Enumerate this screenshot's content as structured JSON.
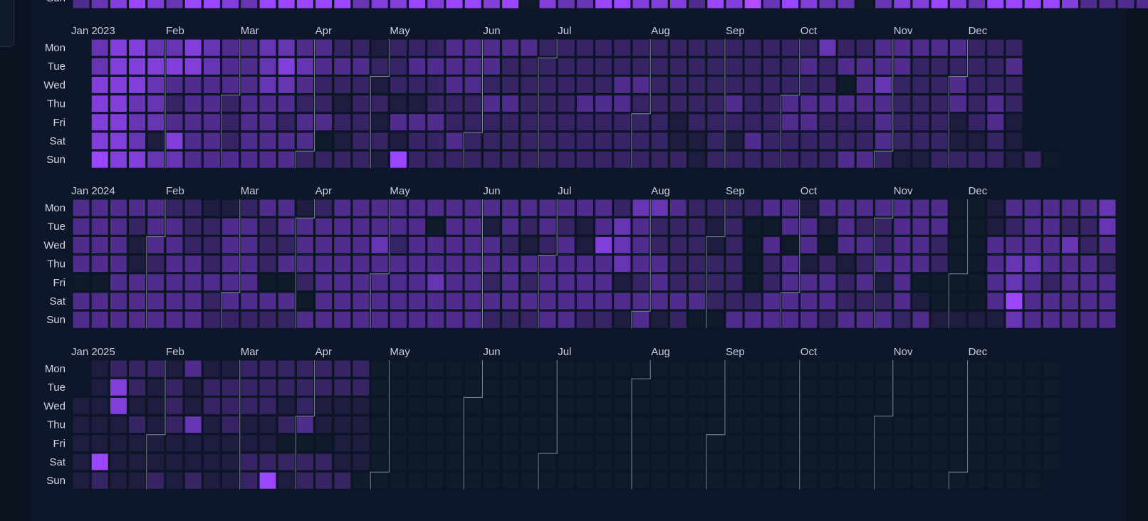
{
  "heatmap": {
    "type": "calendar-heatmap",
    "palette": {
      "empty": "#0f1a2a",
      "low": "#1e1c3f",
      "high": "#9a46ff"
    },
    "day_labels": [
      "Mon",
      "Tue",
      "Wed",
      "Thu",
      "Fri",
      "Sat",
      "Sun"
    ],
    "partial_top": {
      "day_label": "Sun",
      "levels": "34565466546666645565665605446655536574654404556546666533335343444546"
    },
    "years": [
      {
        "label": "Jan 2023",
        "months": [
          "Feb",
          "Mar",
          "Apr",
          "May",
          "Jun",
          "Jul",
          "Aug",
          "Sep",
          "Oct",
          "Nov",
          "Dec"
        ],
        "rows": [
          "-45544543344332212223333322222222222222242233333222",
          "-45555543345433322333332222222222222222323333222223",
          "-55543333344322212223322222223322222222220342223222",
          "-55442332333221221122233222333222223223333332223232",
          "-55443332332332213332222222222221222223322232221231",
          "-55415332333301221223222222222221121322222232221121",
          "-6554433333322221622222222222222212222222332112222120"
        ]
      },
      {
        "label": "Jan 2024",
        "months": [
          "Feb",
          "Mar",
          "Apr",
          "May",
          "Jun",
          "Jul",
          "Aug",
          "Sep",
          "Oct",
          "Nov",
          "Dec"
        ],
        "rows": [
          "33333221123312333333333333333244322223313333333001333334",
          "33323322332333333330331323213432221200331322333001233224",
          "33313322332233334233333212315432221203030332332003333423",
          "33312332332333333333333333333433222202312123332003443332",
          "00333333330023333334332323333123222202333231300003432333",
          "33333332333303333333333333333333332223333222310003633333",
          "33333332222233333333332223322131200333332333231111433333"
        ]
      },
      {
        "label": "Jan 2025",
        "months": [
          "Feb",
          "Mar",
          "Apr",
          "May",
          "Jun",
          "Jul",
          "Aug",
          "Sep",
          "Oct",
          "Nov",
          "Dec"
        ],
        "rows": [
          "-1222131122222220000000000000000000000000000000000000",
          "-1521212222222220000000000000000000000000000000000000",
          "11511212222121110000000000000000000000000000000000000",
          "11121241211231110000000000000000000000000000000000000",
          "11111111111000110000000000000000000000000000000000000",
          "16111111122222110000000000000000000000000000000000000",
          "1211212112612220000000000000000000000000000000000000"
        ]
      }
    ]
  }
}
